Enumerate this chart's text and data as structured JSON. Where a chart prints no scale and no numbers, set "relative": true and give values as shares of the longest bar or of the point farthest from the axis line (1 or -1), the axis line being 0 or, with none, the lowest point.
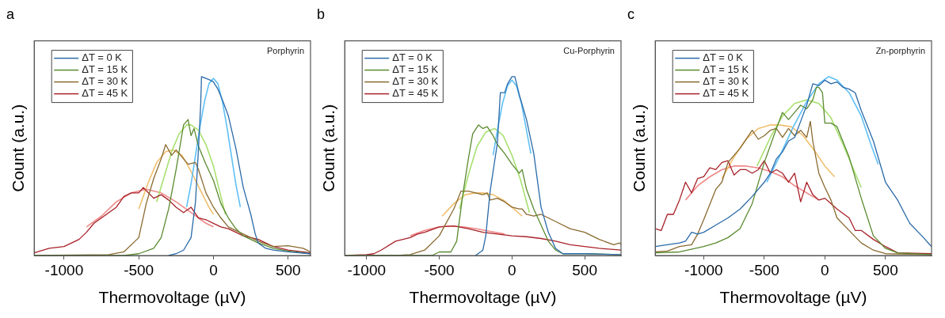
{
  "chart_data": [
    {
      "type": "line",
      "title": "a",
      "xlabel": "Thermovoltage (µV)",
      "ylabel": "Count (a.u.)",
      "annotations": [
        "Porphyrin"
      ],
      "relative": true,
      "xlim": [
        -1200,
        650
      ],
      "xticks": [
        -1000,
        -500,
        0,
        500
      ],
      "tick_labels": "x",
      "legend": "top left",
      "marker": "none",
      "line_style": "solid",
      "grid": false,
      "series": [
        {
          "name": "ΔT = 0 K",
          "color": "#2a6aa8",
          "x": [
            -300,
            -250,
            -200,
            -150,
            -120,
            -100,
            -85,
            -80,
            -50,
            -20,
            0,
            30,
            60,
            100,
            150,
            200,
            250,
            280,
            300,
            350,
            400,
            500,
            650
          ],
          "values": [
            0,
            0.01,
            0.03,
            0.1,
            0.3,
            0.6,
            0.85,
            1.0,
            0.99,
            0.98,
            0.97,
            0.93,
            0.87,
            0.78,
            0.6,
            0.38,
            0.23,
            0.12,
            0.07,
            0.04,
            0.03,
            0.02,
            0.01
          ]
        },
        {
          "name": "ΔT = 15 K",
          "color": "#5a8a30",
          "x": [
            -1200,
            -600,
            -500,
            -400,
            -350,
            -300,
            -250,
            -200,
            -180,
            -170,
            -150,
            -130,
            -100,
            -50,
            0,
            50,
            100,
            150,
            200,
            300,
            400,
            500,
            650
          ],
          "values": [
            0,
            0,
            0.01,
            0.04,
            0.1,
            0.26,
            0.48,
            0.73,
            0.75,
            0.76,
            0.67,
            0.71,
            0.61,
            0.51,
            0.42,
            0.29,
            0.21,
            0.15,
            0.11,
            0.07,
            0.04,
            0.025,
            0.01
          ]
        },
        {
          "name": "ΔT = 30 K",
          "color": "#8a6a30",
          "x": [
            -1200,
            -700,
            -600,
            -500,
            -450,
            -400,
            -350,
            -320,
            -280,
            -250,
            -200,
            -170,
            -120,
            -100,
            -50,
            0,
            50,
            100,
            200,
            300,
            400,
            500,
            600,
            650
          ],
          "values": [
            0,
            0.005,
            0.02,
            0.1,
            0.29,
            0.43,
            0.54,
            0.62,
            0.56,
            0.59,
            0.54,
            0.51,
            0.52,
            0.48,
            0.35,
            0.27,
            0.21,
            0.16,
            0.12,
            0.08,
            0.05,
            0.055,
            0.04,
            0.02
          ]
        },
        {
          "name": "ΔT = 45 K",
          "color": "#a82028",
          "x": [
            -1200,
            -1100,
            -1000,
            -900,
            -850,
            -800,
            -750,
            -700,
            -650,
            -600,
            -550,
            -500,
            -470,
            -400,
            -350,
            -300,
            -250,
            -200,
            -150,
            -100,
            -50,
            0,
            50,
            100,
            150,
            200,
            300,
            400,
            500,
            600,
            650
          ],
          "values": [
            0.015,
            0.04,
            0.05,
            0.09,
            0.13,
            0.18,
            0.21,
            0.24,
            0.27,
            0.33,
            0.35,
            0.35,
            0.38,
            0.32,
            0.34,
            0.31,
            0.27,
            0.24,
            0.27,
            0.21,
            0.2,
            0.18,
            0.16,
            0.15,
            0.13,
            0.11,
            0.09,
            0.05,
            0.03,
            0.02,
            0.015
          ]
        },
        {
          "color": "#5fc0f5",
          "x": [
            -180,
            -150,
            -120,
            -90,
            -60,
            -30,
            0,
            30,
            60,
            90,
            120,
            150,
            180
          ],
          "values": [
            0.27,
            0.4,
            0.56,
            0.72,
            0.86,
            0.96,
            0.99,
            0.96,
            0.86,
            0.72,
            0.56,
            0.4,
            0.27
          ]
        },
        {
          "color": "#a8e070",
          "x": [
            -380,
            -330,
            -280,
            -230,
            -180,
            -150,
            -100,
            -50,
            0,
            50,
            80
          ],
          "values": [
            0.3,
            0.44,
            0.58,
            0.68,
            0.73,
            0.73,
            0.7,
            0.62,
            0.5,
            0.33,
            0.23
          ]
        },
        {
          "color": "#f0c070",
          "x": [
            -500,
            -440,
            -380,
            -320,
            -270,
            -210,
            -150,
            -90,
            -30,
            0
          ],
          "values": [
            0.26,
            0.4,
            0.52,
            0.58,
            0.59,
            0.56,
            0.47,
            0.37,
            0.27,
            0.23
          ]
        },
        {
          "color": "#f08888",
          "x": [
            -850,
            -750,
            -650,
            -550,
            -450,
            -350,
            -250,
            -150,
            -50,
            0
          ],
          "values": [
            0.16,
            0.22,
            0.3,
            0.35,
            0.37,
            0.35,
            0.3,
            0.24,
            0.18,
            0.16
          ]
        }
      ]
    },
    {
      "type": "line",
      "title": "b",
      "xlabel": "Thermovoltage (µV)",
      "ylabel": "Count (a.u.)",
      "annotations": [
        "Cu-Porphyrin"
      ],
      "relative": true,
      "xlim": [
        -1150,
        750
      ],
      "xticks": [
        -1000,
        -500,
        0,
        500
      ],
      "tick_labels": "x",
      "legend": "top left",
      "marker": "none",
      "line_style": "solid",
      "grid": false,
      "series": [
        {
          "name": "ΔT = 0 K",
          "color": "#2a6aa8",
          "x": [
            -250,
            -200,
            -180,
            -150,
            -100,
            -80,
            -50,
            -30,
            0,
            20,
            50,
            100,
            150,
            200,
            250,
            300,
            350,
            500,
            750
          ],
          "values": [
            0,
            0.03,
            0.11,
            0.36,
            0.63,
            0.91,
            0.91,
            0.96,
            1.0,
            1.0,
            0.9,
            0.76,
            0.57,
            0.27,
            0.13,
            0.04,
            0.01,
            0.01,
            0.005
          ]
        },
        {
          "name": "ΔT = 15 K",
          "color": "#5a8a30",
          "x": [
            -1150,
            -550,
            -500,
            -420,
            -380,
            -340,
            -300,
            -270,
            -230,
            -200,
            -170,
            -130,
            -100,
            -50,
            0,
            30,
            50,
            70,
            100,
            150,
            200,
            250,
            300,
            350,
            500,
            750
          ],
          "values": [
            0,
            0,
            0.02,
            0.02,
            0.08,
            0.33,
            0.54,
            0.68,
            0.73,
            0.71,
            0.72,
            0.67,
            0.62,
            0.57,
            0.51,
            0.48,
            0.46,
            0.48,
            0.37,
            0.26,
            0.17,
            0.08,
            0.03,
            0.01,
            0.01,
            0.005
          ]
        },
        {
          "name": "ΔT = 30 K",
          "color": "#8a6a30",
          "x": [
            -1150,
            -800,
            -700,
            -600,
            -500,
            -400,
            -350,
            -300,
            -250,
            -200,
            -170,
            -150,
            -100,
            -50,
            0,
            50,
            70,
            100,
            150,
            200,
            250,
            300,
            400,
            500,
            600,
            700,
            740,
            750
          ],
          "values": [
            0,
            0,
            0.005,
            0.03,
            0.11,
            0.26,
            0.36,
            0.36,
            0.35,
            0.34,
            0.35,
            0.31,
            0.32,
            0.3,
            0.27,
            0.26,
            0.26,
            0.23,
            0.22,
            0.23,
            0.21,
            0.19,
            0.15,
            0.13,
            0.09,
            0.06,
            0.07,
            0.06
          ]
        },
        {
          "name": "ΔT = 45 K",
          "color": "#a82028",
          "x": [
            -1150,
            -1000,
            -950,
            -900,
            -800,
            -750,
            -700,
            -650,
            -600,
            -500,
            -400,
            -300,
            -200,
            -100,
            0,
            100,
            200,
            300,
            400,
            500,
            600,
            750
          ],
          "values": [
            0,
            0.005,
            0.01,
            0.03,
            0.08,
            0.09,
            0.1,
            0.12,
            0.13,
            0.16,
            0.165,
            0.15,
            0.13,
            0.12,
            0.11,
            0.105,
            0.095,
            0.08,
            0.06,
            0.05,
            0.04,
            0.03
          ]
        },
        {
          "color": "#5fc0f5",
          "x": [
            -130,
            -100,
            -65,
            -30,
            0,
            30,
            65,
            100,
            130
          ],
          "values": [
            0.56,
            0.7,
            0.85,
            0.95,
            0.98,
            0.95,
            0.85,
            0.7,
            0.57
          ]
        },
        {
          "color": "#a8e070",
          "x": [
            -360,
            -300,
            -240,
            -180,
            -120,
            -60,
            0,
            60,
            120
          ],
          "values": [
            0.26,
            0.45,
            0.61,
            0.69,
            0.71,
            0.67,
            0.56,
            0.42,
            0.24
          ]
        },
        {
          "color": "#f0c070",
          "x": [
            -480,
            -400,
            -320,
            -250,
            -200,
            -130,
            -60,
            0,
            70
          ],
          "values": [
            0.22,
            0.29,
            0.34,
            0.35,
            0.35,
            0.34,
            0.31,
            0.27,
            0.22
          ]
        },
        {
          "color": "#f08888",
          "x": [
            -700,
            -600,
            -500,
            -420,
            -340,
            -250,
            -150,
            -50
          ],
          "values": [
            0.11,
            0.14,
            0.16,
            0.165,
            0.16,
            0.15,
            0.135,
            0.12
          ]
        }
      ]
    },
    {
      "type": "line",
      "title": "c",
      "xlabel": "Thermovoltage (µV)",
      "ylabel": "Count (a.u.)",
      "annotations": [
        "Zn-porphyrin"
      ],
      "relative": true,
      "xlim": [
        -1400,
        880
      ],
      "xticks": [
        -1000,
        -500,
        0,
        500
      ],
      "tick_labels": "x",
      "legend": "top left",
      "marker": "none",
      "line_style": "solid",
      "grid": false,
      "series": [
        {
          "name": "ΔT = 0 K",
          "color": "#2a6aa8",
          "x": [
            -1400,
            -1300,
            -1200,
            -1150,
            -1100,
            -1050,
            -1000,
            -900,
            -800,
            -700,
            -600,
            -500,
            -450,
            -400,
            -350,
            -300,
            -250,
            -200,
            -150,
            -100,
            -50,
            0,
            50,
            100,
            150,
            200,
            250,
            300,
            400,
            500,
            600,
            700,
            800,
            880
          ],
          "values": [
            0.05,
            0.06,
            0.07,
            0.08,
            0.13,
            0.12,
            0.13,
            0.17,
            0.21,
            0.26,
            0.33,
            0.41,
            0.46,
            0.54,
            0.58,
            0.64,
            0.66,
            0.75,
            0.84,
            0.96,
            0.95,
            0.98,
            0.96,
            0.97,
            0.94,
            0.93,
            0.91,
            0.81,
            0.64,
            0.41,
            0.31,
            0.18,
            0.11,
            0.05
          ]
        },
        {
          "name": "ΔT = 15 K",
          "color": "#5a8a30",
          "x": [
            -1400,
            -1200,
            -1000,
            -900,
            -800,
            -700,
            -600,
            -500,
            -400,
            -350,
            -300,
            -250,
            -200,
            -150,
            -100,
            -70,
            -50,
            -20,
            0,
            50,
            100,
            200,
            300,
            400,
            500,
            600,
            880
          ],
          "values": [
            0.015,
            0.02,
            0.05,
            0.07,
            0.1,
            0.15,
            0.29,
            0.52,
            0.71,
            0.8,
            0.76,
            0.8,
            0.84,
            0.82,
            0.87,
            0.94,
            0.94,
            0.91,
            0.74,
            0.74,
            0.72,
            0.55,
            0.32,
            0.11,
            0.04,
            0.015,
            0.005
          ]
        },
        {
          "name": "ΔT = 30 K",
          "color": "#8a6a30",
          "x": [
            -1400,
            -1300,
            -1200,
            -1100,
            -1050,
            -1000,
            -900,
            -850,
            -800,
            -700,
            -600,
            -550,
            -500,
            -450,
            -400,
            -350,
            -300,
            -250,
            -200,
            -150,
            -120,
            -100,
            -50,
            0,
            50,
            100,
            200,
            300,
            400,
            500,
            880
          ],
          "values": [
            0.02,
            0.025,
            0.05,
            0.06,
            0.12,
            0.2,
            0.37,
            0.41,
            0.52,
            0.6,
            0.7,
            0.65,
            0.67,
            0.7,
            0.71,
            0.66,
            0.71,
            0.67,
            0.7,
            0.66,
            0.75,
            0.64,
            0.46,
            0.38,
            0.31,
            0.21,
            0.14,
            0.07,
            0.03,
            0.01,
            0.005
          ]
        },
        {
          "name": "ΔT = 45 K",
          "color": "#a82028",
          "x": [
            -1400,
            -1350,
            -1300,
            -1250,
            -1200,
            -1150,
            -1100,
            -1050,
            -1000,
            -950,
            -900,
            -850,
            -800,
            -750,
            -700,
            -650,
            -600,
            -550,
            -500,
            -450,
            -400,
            -350,
            -300,
            -250,
            -200,
            -150,
            -100,
            -50,
            0,
            100,
            200,
            250,
            300,
            400,
            500,
            600,
            880
          ],
          "values": [
            0.15,
            0.14,
            0.23,
            0.23,
            0.31,
            0.41,
            0.35,
            0.43,
            0.44,
            0.49,
            0.48,
            0.52,
            0.53,
            0.45,
            0.48,
            0.48,
            0.46,
            0.48,
            0.53,
            0.46,
            0.48,
            0.46,
            0.41,
            0.46,
            0.3,
            0.41,
            0.34,
            0.31,
            0.32,
            0.26,
            0.21,
            0.14,
            0.14,
            0.09,
            0.05,
            0.015,
            0.01
          ]
        },
        {
          "color": "#5fc0f5",
          "x": [
            -480,
            -370,
            -260,
            -150,
            -50,
            30,
            100,
            200,
            300,
            380,
            440
          ],
          "values": [
            0.41,
            0.56,
            0.72,
            0.86,
            0.96,
            1.0,
            0.98,
            0.91,
            0.78,
            0.62,
            0.51
          ]
        },
        {
          "color": "#a8e070",
          "x": [
            -560,
            -450,
            -350,
            -250,
            -150,
            -50,
            50,
            150,
            250,
            300
          ],
          "values": [
            0.5,
            0.66,
            0.78,
            0.85,
            0.87,
            0.85,
            0.77,
            0.62,
            0.46,
            0.38
          ]
        },
        {
          "color": "#f0c070",
          "x": [
            -850,
            -750,
            -650,
            -550,
            -450,
            -380,
            -280,
            -180,
            -80,
            0,
            80
          ],
          "values": [
            0.43,
            0.55,
            0.65,
            0.71,
            0.73,
            0.73,
            0.72,
            0.67,
            0.58,
            0.5,
            0.44
          ]
        },
        {
          "color": "#f08888",
          "x": [
            -1150,
            -1050,
            -950,
            -850,
            -750,
            -650,
            -550,
            -450,
            -350,
            -250,
            -150,
            -50
          ],
          "values": [
            0.31,
            0.39,
            0.44,
            0.48,
            0.5,
            0.5,
            0.49,
            0.47,
            0.44,
            0.39,
            0.35,
            0.31
          ]
        }
      ]
    }
  ]
}
